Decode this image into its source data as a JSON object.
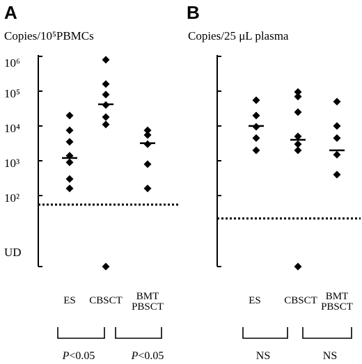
{
  "figure": {
    "panels": [
      {
        "letter": "A",
        "ylabel": "Copies/10⁵PBMCs"
      },
      {
        "letter": "B",
        "ylabel": "Copies/25 μL plasma"
      }
    ],
    "y_ticks": [
      "10⁶",
      "10⁵",
      "10⁴",
      "10³",
      "10²",
      "UD"
    ],
    "stats_a": [
      "P<0.05",
      "P<0.05"
    ],
    "stats_b": [
      "NS",
      "NS"
    ]
  },
  "chart_data": [
    {
      "type": "scatter",
      "panel": "A",
      "ylabel": "Copies/10⁵PBMCs",
      "y_scale": "log",
      "ylim": [
        10,
        1000000
      ],
      "y_tick_labels": [
        "10⁶",
        "10⁵",
        "10⁴",
        "10³",
        "10²",
        "UD"
      ],
      "categories": [
        {
          "name": "ES",
          "label_lines": [
            "ES"
          ],
          "points": [
            20000,
            7500,
            3500,
            1400,
            900,
            300,
            160
          ],
          "median": 1200
        },
        {
          "name": "CBSCT",
          "label_lines": [
            "CBSCT"
          ],
          "points": [
            800000,
            160000,
            80000,
            40000,
            18000,
            11000,
            "UD"
          ],
          "median": 42000
        },
        {
          "name": "BMT PBSCT",
          "label_lines": [
            "BMT",
            "PBSCT"
          ],
          "points": [
            7500,
            5500,
            3000,
            800,
            160
          ],
          "median": 3200
        }
      ],
      "reference_line": 55,
      "comparisons": [
        "P<0.05",
        "P<0.05"
      ]
    },
    {
      "type": "scatter",
      "panel": "B",
      "ylabel": "Copies/25 μL plasma",
      "y_scale": "log",
      "ylim": [
        10,
        1000000
      ],
      "y_tick_labels": [],
      "categories": [
        {
          "name": "ES",
          "label_lines": [
            "ES"
          ],
          "points": [
            55000,
            20000,
            9500,
            4500,
            2000
          ],
          "median": 10000
        },
        {
          "name": "CBSCT",
          "label_lines": [
            "CBSCT"
          ],
          "points": [
            95000,
            70000,
            25000,
            5000,
            3000,
            2000,
            "UD"
          ],
          "median": 4000
        },
        {
          "name": "BMT PBSCT",
          "label_lines": [
            "BMT",
            "PBSCT"
          ],
          "points": [
            50000,
            10000,
            4500,
            1500,
            400
          ],
          "median": 2000
        }
      ],
      "reference_line": 22,
      "comparisons": [
        "NS",
        "NS"
      ]
    }
  ]
}
